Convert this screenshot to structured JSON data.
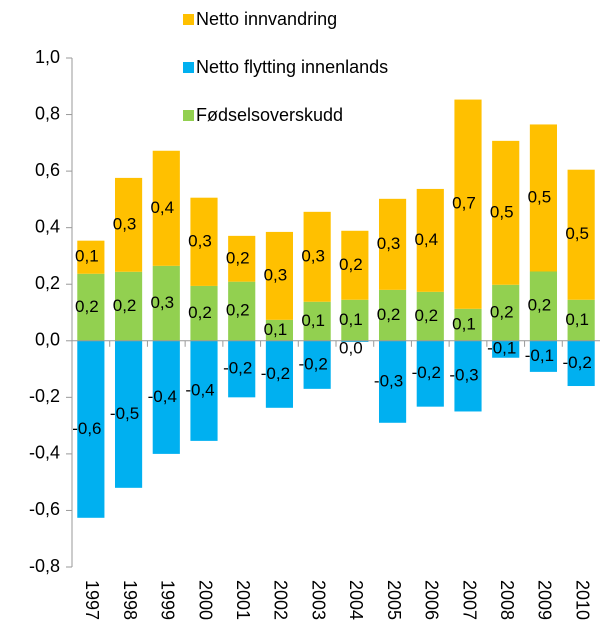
{
  "chart_data": {
    "type": "bar",
    "stacked": true,
    "categories": [
      "1997",
      "1998",
      "1999",
      "2000",
      "2001",
      "2002",
      "2003",
      "2004",
      "2005",
      "2006",
      "2007",
      "2008",
      "2009",
      "2010"
    ],
    "series": [
      {
        "name": "Netto innvandring",
        "color": "#ffc000",
        "values": [
          0.117,
          0.332,
          0.407,
          0.312,
          0.162,
          0.311,
          0.318,
          0.244,
          0.322,
          0.364,
          0.74,
          0.509,
          0.52,
          0.46
        ],
        "value_labels": [
          "0,1",
          "0,3",
          "0,4",
          "0,3",
          "0,2",
          "0,3",
          "0,3",
          "0,2",
          "0,3",
          "0,4",
          "0,7",
          "0,5",
          "0,5",
          "0,5"
        ]
      },
      {
        "name": "Netto flytting innenlands",
        "color": "#00b0f0",
        "values": [
          -0.626,
          -0.52,
          -0.4,
          -0.354,
          -0.2,
          -0.237,
          -0.17,
          -0.004,
          -0.29,
          -0.233,
          -0.25,
          -0.06,
          -0.11,
          -0.16
        ],
        "value_labels": [
          "-0,6",
          "-0,5",
          "-0,4",
          "-0,4",
          "-0,2",
          "-0,2",
          "-0,2",
          "0,0",
          "-0,3",
          "-0,2",
          "-0,3",
          "-0,1",
          "-0,1",
          "-0,2"
        ]
      },
      {
        "name": "Fødselsoverskudd",
        "color": "#92d050",
        "values": [
          0.237,
          0.244,
          0.265,
          0.194,
          0.209,
          0.074,
          0.138,
          0.145,
          0.18,
          0.173,
          0.113,
          0.198,
          0.245,
          0.145
        ],
        "value_labels": [
          "0,2",
          "0,2",
          "0,3",
          "0,2",
          "0,2",
          "0,1",
          "0,1",
          "0,1",
          "0,2",
          "0,2",
          "0,1",
          "0,2",
          "0,2",
          "0,1"
        ]
      }
    ],
    "ylim": [
      -0.8,
      1.0
    ],
    "yticks": [
      {
        "value": -0.8,
        "label": "-0,8"
      },
      {
        "value": -0.6,
        "label": "-0,6"
      },
      {
        "value": -0.4,
        "label": "-0,4"
      },
      {
        "value": -0.2,
        "label": "-0,2"
      },
      {
        "value": 0,
        "label": "0,0"
      },
      {
        "value": 0.2,
        "label": "0,2"
      },
      {
        "value": 0.4,
        "label": "0,4"
      },
      {
        "value": 0.6,
        "label": "0,6"
      },
      {
        "value": 0.8,
        "label": "0,8"
      },
      {
        "value": 1.0,
        "label": "1,0"
      }
    ],
    "grid": false,
    "legend": "top"
  }
}
